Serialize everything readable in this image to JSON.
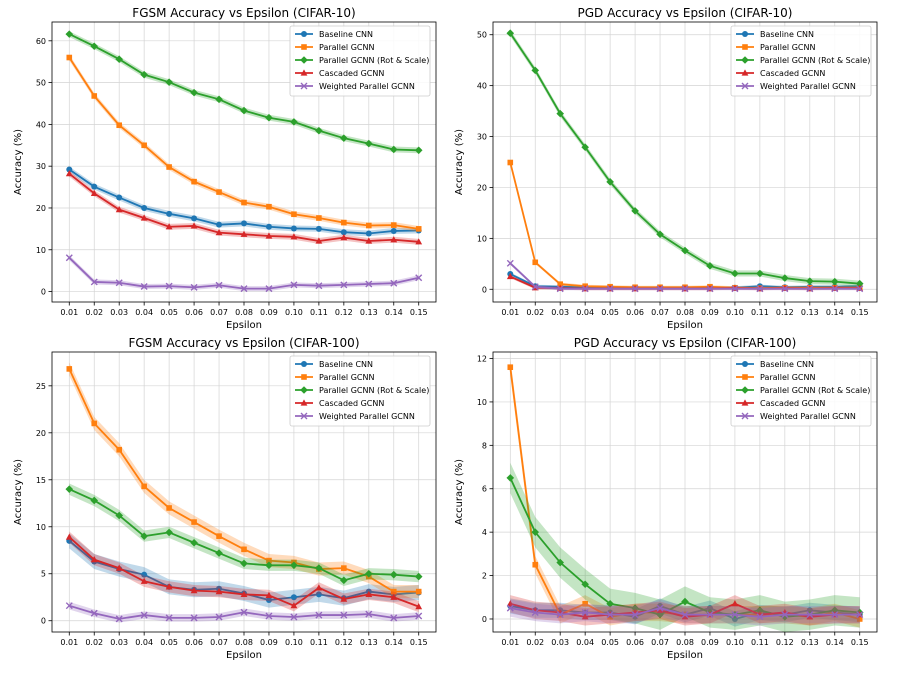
{
  "colors": {
    "baseline": "#1f77b4",
    "parallel": "#ff7f0e",
    "parallel_rs": "#2ca02c",
    "cascaded": "#d62728",
    "weighted": "#9467bd"
  },
  "chart_data": [
    {
      "type": "line",
      "title": "FGSM Accuracy vs Epsilon (CIFAR-10)",
      "xlabel": "Epsilon",
      "ylabel": "Accuracy (%)",
      "x": [
        "0.01",
        "0.02",
        "0.03",
        "0.04",
        "0.05",
        "0.06",
        "0.07",
        "0.08",
        "0.09",
        "0.10",
        "0.11",
        "0.12",
        "0.13",
        "0.14",
        "0.15"
      ],
      "ylim": [
        -2.5,
        64.5
      ],
      "yticks": [
        0,
        10,
        20,
        30,
        40,
        50,
        60
      ],
      "grid": true,
      "legend": "top-right",
      "series": [
        {
          "name": "Baseline CNN",
          "key": "baseline",
          "marker": "circle",
          "band": 0.7,
          "values": [
            29.2,
            25.1,
            22.5,
            20.0,
            18.6,
            17.5,
            16.0,
            16.3,
            15.5,
            15.1,
            15.0,
            14.2,
            13.9,
            14.5,
            14.6
          ]
        },
        {
          "name": "Parallel GCNN",
          "key": "parallel",
          "marker": "square",
          "band": 0.7,
          "values": [
            56.0,
            46.8,
            39.8,
            35.0,
            29.8,
            26.3,
            23.8,
            21.3,
            20.3,
            18.5,
            17.6,
            16.5,
            15.8,
            15.9,
            15.0
          ]
        },
        {
          "name": "Parallel GCNN (Rot & Scale)",
          "key": "parallel_rs",
          "marker": "diamond",
          "band": 0.7,
          "values": [
            61.6,
            58.7,
            55.6,
            51.9,
            50.1,
            47.6,
            46.0,
            43.3,
            41.6,
            40.6,
            38.5,
            36.7,
            35.4,
            34.0,
            33.8
          ]
        },
        {
          "name": "Cascaded GCNN",
          "key": "cascaded",
          "marker": "triangle",
          "band": 0.7,
          "values": [
            28.2,
            23.5,
            19.6,
            17.6,
            15.5,
            15.7,
            14.1,
            13.7,
            13.3,
            13.1,
            12.1,
            12.9,
            12.1,
            12.4,
            11.9
          ]
        },
        {
          "name": "Weighted Parallel GCNN",
          "key": "weighted",
          "marker": "x",
          "band": 0.6,
          "values": [
            8.1,
            2.3,
            2.1,
            1.2,
            1.3,
            1.0,
            1.5,
            0.7,
            0.7,
            1.6,
            1.4,
            1.6,
            1.8,
            2.0,
            3.3
          ]
        }
      ]
    },
    {
      "type": "line",
      "title": "PGD Accuracy vs Epsilon (CIFAR-10)",
      "xlabel": "Epsilon",
      "ylabel": "Accuracy (%)",
      "x": [
        "0.01",
        "0.02",
        "0.03",
        "0.04",
        "0.05",
        "0.06",
        "0.07",
        "0.08",
        "0.09",
        "0.10",
        "0.11",
        "0.12",
        "0.13",
        "0.14",
        "0.15"
      ],
      "ylim": [
        -2.5,
        52.5
      ],
      "yticks": [
        0,
        10,
        20,
        30,
        40,
        50
      ],
      "grid": true,
      "legend": "top-right",
      "series": [
        {
          "name": "Baseline CNN",
          "key": "baseline",
          "marker": "circle",
          "band": 0.3,
          "values": [
            3.0,
            0.6,
            0.5,
            0.4,
            0.4,
            0.3,
            0.3,
            0.3,
            0.3,
            0.3,
            0.6,
            0.4,
            0.5,
            0.5,
            0.6
          ]
        },
        {
          "name": "Parallel GCNN",
          "key": "parallel",
          "marker": "square",
          "band": 0.3,
          "values": [
            24.9,
            5.3,
            1.0,
            0.6,
            0.5,
            0.4,
            0.4,
            0.4,
            0.5,
            0.3,
            0.2,
            0.3,
            0.3,
            0.3,
            0.3
          ]
        },
        {
          "name": "Parallel GCNN (Rot & Scale)",
          "key": "parallel_rs",
          "marker": "diamond",
          "band": 0.6,
          "values": [
            50.3,
            43.0,
            34.5,
            27.9,
            21.1,
            15.4,
            10.8,
            7.6,
            4.6,
            3.1,
            3.1,
            2.2,
            1.6,
            1.5,
            1.1
          ]
        },
        {
          "name": "Cascaded GCNN",
          "key": "cascaded",
          "marker": "triangle",
          "band": 0.3,
          "values": [
            2.5,
            0.3,
            0.2,
            0.1,
            0.1,
            0.1,
            0.1,
            0.1,
            0.1,
            0.2,
            0.1,
            0.2,
            0.1,
            0.2,
            0.2
          ]
        },
        {
          "name": "Weighted Parallel GCNN",
          "key": "weighted",
          "marker": "x",
          "band": 0.3,
          "values": [
            5.1,
            0.5,
            0.1,
            0.1,
            0.1,
            0.1,
            0.1,
            0.1,
            0.1,
            0.1,
            0.1,
            0.1,
            0.1,
            0.1,
            0.1
          ]
        }
      ]
    },
    {
      "type": "line",
      "title": "FGSM Accuracy vs Epsilon (CIFAR-100)",
      "xlabel": "Epsilon",
      "ylabel": "Accuracy (%)",
      "x": [
        "0.01",
        "0.02",
        "0.03",
        "0.04",
        "0.05",
        "0.06",
        "0.07",
        "0.08",
        "0.09",
        "0.10",
        "0.11",
        "0.12",
        "0.13",
        "0.14",
        "0.15"
      ],
      "ylim": [
        -1.2,
        28.6
      ],
      "yticks": [
        0,
        5,
        10,
        15,
        20,
        25
      ],
      "grid": true,
      "legend": "top-right",
      "series": [
        {
          "name": "Baseline CNN",
          "key": "baseline",
          "marker": "circle",
          "band": 0.8,
          "values": [
            8.5,
            6.3,
            5.5,
            4.9,
            3.6,
            3.3,
            3.4,
            2.9,
            2.2,
            2.5,
            2.8,
            2.4,
            3.1,
            2.8,
            3.0
          ]
        },
        {
          "name": "Parallel GCNN",
          "key": "parallel",
          "marker": "square",
          "band": 0.7,
          "values": [
            26.8,
            21.0,
            18.2,
            14.3,
            12.0,
            10.5,
            9.0,
            7.6,
            6.4,
            6.2,
            5.5,
            5.6,
            4.7,
            3.1,
            3.1
          ]
        },
        {
          "name": "Parallel GCNN (Rot & Scale)",
          "key": "parallel_rs",
          "marker": "diamond",
          "band": 0.6,
          "values": [
            14.0,
            12.8,
            11.2,
            9.0,
            9.4,
            8.3,
            7.2,
            6.1,
            5.9,
            5.9,
            5.6,
            4.3,
            5.0,
            4.9,
            4.7
          ]
        },
        {
          "name": "Cascaded GCNN",
          "key": "cascaded",
          "marker": "triangle",
          "band": 0.6,
          "values": [
            8.9,
            6.5,
            5.6,
            4.2,
            3.6,
            3.2,
            3.1,
            2.8,
            2.7,
            1.6,
            3.5,
            2.3,
            2.8,
            2.5,
            1.5
          ]
        },
        {
          "name": "Weighted Parallel GCNN",
          "key": "weighted",
          "marker": "x",
          "band": 0.4,
          "values": [
            1.6,
            0.8,
            0.2,
            0.6,
            0.3,
            0.3,
            0.4,
            0.9,
            0.5,
            0.4,
            0.6,
            0.6,
            0.7,
            0.3,
            0.5
          ]
        }
      ]
    },
    {
      "type": "line",
      "title": "PGD Accuracy vs Epsilon (CIFAR-100)",
      "xlabel": "Epsilon",
      "ylabel": "Accuracy (%)",
      "x": [
        "0.01",
        "0.02",
        "0.03",
        "0.04",
        "0.05",
        "0.06",
        "0.07",
        "0.08",
        "0.09",
        "0.10",
        "0.11",
        "0.12",
        "0.13",
        "0.14",
        "0.15"
      ],
      "ylim": [
        -0.6,
        12.3
      ],
      "yticks": [
        0,
        2,
        4,
        6,
        8,
        10,
        12
      ],
      "grid": true,
      "legend": "top-right",
      "series": [
        {
          "name": "Baseline CNN",
          "key": "baseline",
          "marker": "circle",
          "band": 0.35,
          "values": [
            0.6,
            0.4,
            0.4,
            0.3,
            0.3,
            0.1,
            0.6,
            0.2,
            0.5,
            0.0,
            0.3,
            0.2,
            0.4,
            0.3,
            0.2
          ]
        },
        {
          "name": "Parallel GCNN",
          "key": "parallel",
          "marker": "square",
          "band": 0.4,
          "values": [
            11.6,
            2.5,
            0.2,
            0.7,
            0.1,
            0.3,
            0.3,
            0.2,
            0.2,
            0.2,
            0.2,
            0.2,
            0.1,
            0.3,
            0.0
          ]
        },
        {
          "name": "Parallel GCNN (Rot & Scale)",
          "key": "parallel_rs",
          "marker": "diamond",
          "band": 0.7,
          "values": [
            6.5,
            4.0,
            2.6,
            1.6,
            0.7,
            0.5,
            0.2,
            0.8,
            0.3,
            0.2,
            0.4,
            0.1,
            0.2,
            0.4,
            0.3
          ]
        },
        {
          "name": "Cascaded GCNN",
          "key": "cascaded",
          "marker": "triangle",
          "band": 0.4,
          "values": [
            0.7,
            0.4,
            0.3,
            0.1,
            0.2,
            0.3,
            0.4,
            0.1,
            0.2,
            0.7,
            0.2,
            0.3,
            0.1,
            0.2,
            0.2
          ]
        },
        {
          "name": "Weighted Parallel GCNN",
          "key": "weighted",
          "marker": "x",
          "band": 0.4,
          "values": [
            0.5,
            0.3,
            0.2,
            0.3,
            0.2,
            0.2,
            0.5,
            0.2,
            0.2,
            0.2,
            0.1,
            0.2,
            0.2,
            0.2,
            0.2
          ]
        }
      ]
    }
  ]
}
